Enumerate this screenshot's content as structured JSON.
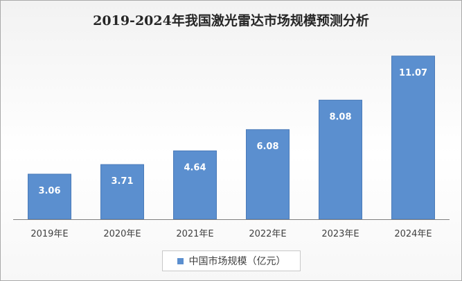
{
  "chart_data": {
    "type": "bar",
    "title": "2019-2024年我国激光雷达市场规模预测分析",
    "categories": [
      "2019年E",
      "2020年E",
      "2021年E",
      "2022年E",
      "2023年E",
      "2024年E"
    ],
    "series": [
      {
        "name": "中国市场规模（亿元）",
        "values": [
          3.06,
          3.71,
          4.64,
          6.08,
          8.08,
          11.07
        ]
      }
    ],
    "value_labels": [
      "3.06",
      "3.71",
      "4.64",
      "6.08",
      "8.08",
      "11.07"
    ],
    "ylim": [
      0,
      12
    ],
    "grid": false,
    "legend_position": "bottom",
    "colors": {
      "bar": "#5b8fcf",
      "bar_edge": "#4a7ab8",
      "label": "#ffffff",
      "axis": "#7f7f7f"
    }
  }
}
